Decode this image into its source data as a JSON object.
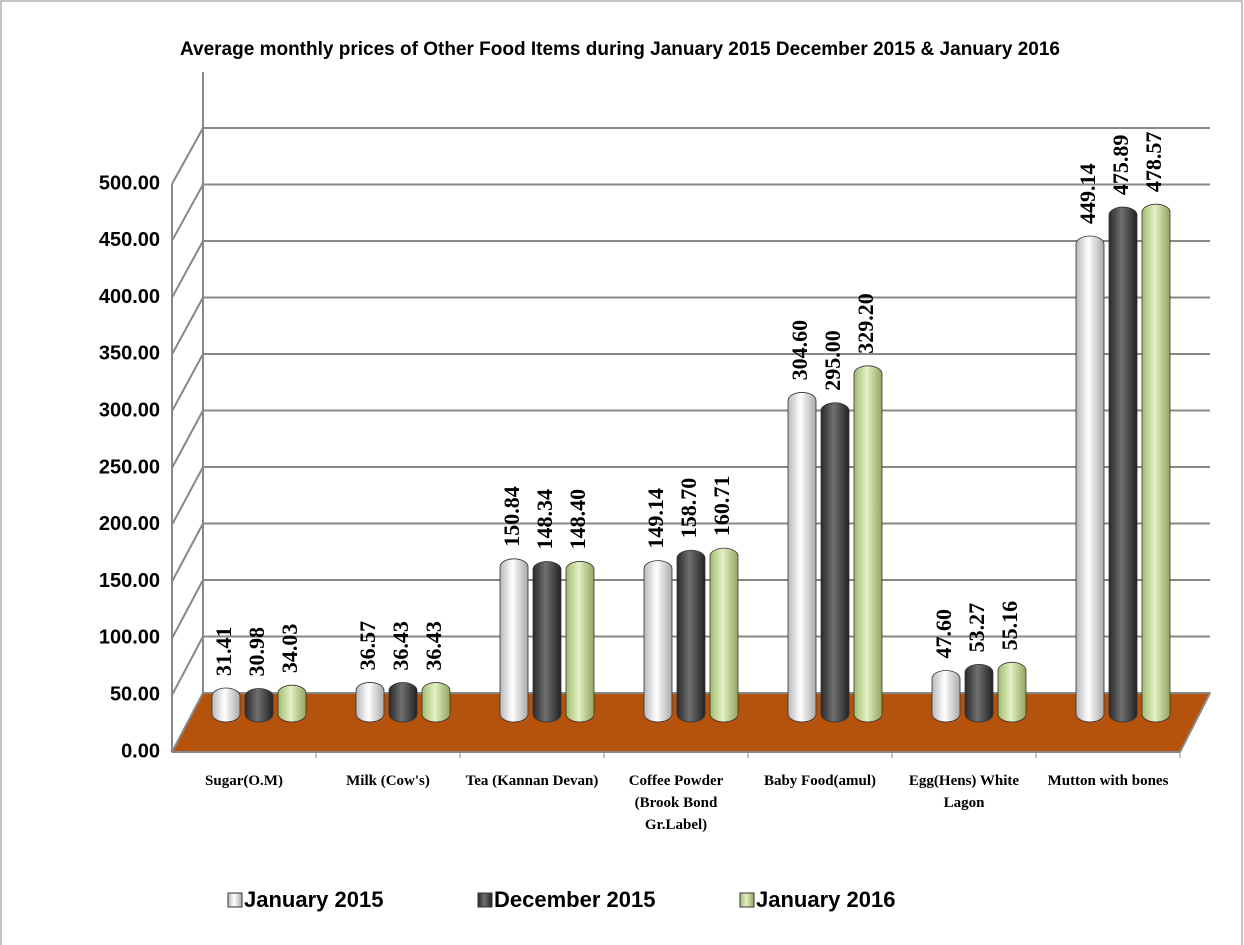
{
  "chart_data": {
    "type": "bar",
    "title": "Average monthly prices of Other Food Items during  January 2015 December 2015 & January 2016",
    "categories": [
      "Sugar(O.M)",
      "Milk  (Cow's)",
      "Tea (Kannan Devan)",
      "Coffee Powder (Brook Bond Gr.Label)",
      "Baby Food(amul)",
      "Egg(Hens) White Lagon",
      "Mutton with bones"
    ],
    "series": [
      {
        "name": "January 2015",
        "color": "#e6e6e6",
        "values": [
          31.41,
          36.57,
          150.84,
          149.14,
          304.6,
          47.6,
          449.14
        ],
        "value_labels": [
          "31.41",
          "36.57",
          "150.84",
          "149.14",
          "304.60",
          "47.60",
          "449.14"
        ]
      },
      {
        "name": "December 2015",
        "color": "#555555",
        "values": [
          30.98,
          36.43,
          148.34,
          158.7,
          295,
          53.27,
          475.89
        ],
        "value_labels": [
          "30.98",
          "36.43",
          "148.34",
          "158.70",
          "295.00",
          "53.27",
          "475.89"
        ]
      },
      {
        "name": "January 2016",
        "color": "#c5d99a",
        "values": [
          34.03,
          36.43,
          148.4,
          160.71,
          329.2,
          55.16,
          478.57
        ],
        "value_labels": [
          "34.03",
          "36.43",
          "148.40",
          "160.71",
          "329.20",
          "55.16",
          "478.57"
        ]
      }
    ],
    "ylim": [
      0,
      500
    ],
    "yticks": [
      {
        "value": 0,
        "label": "0.00"
      },
      {
        "value": 50,
        "label": "50.00"
      },
      {
        "value": 100,
        "label": "100.00"
      },
      {
        "value": 150,
        "label": "150.00"
      },
      {
        "value": 200,
        "label": "200.00"
      },
      {
        "value": 250,
        "label": "250.00"
      },
      {
        "value": 300,
        "label": "300.00"
      },
      {
        "value": 350,
        "label": "350.00"
      },
      {
        "value": 400,
        "label": "400.00"
      },
      {
        "value": 450,
        "label": "450.00"
      },
      {
        "value": 500,
        "label": "500.00"
      }
    ],
    "grid": true,
    "floor_color": "#b5520b"
  }
}
